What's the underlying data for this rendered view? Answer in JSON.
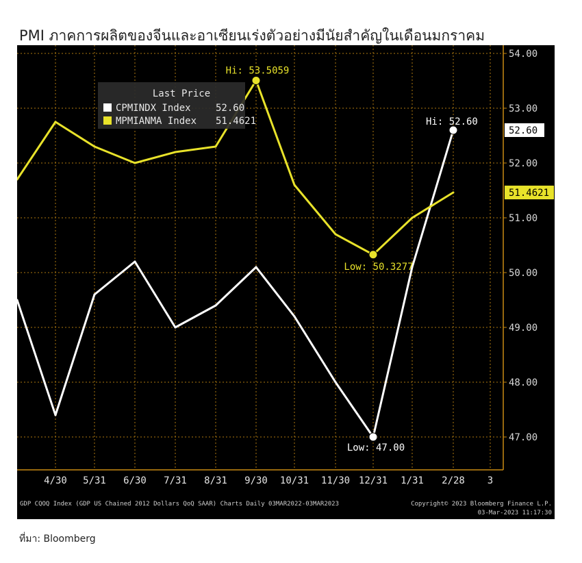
{
  "page": {
    "title": "PMI ภาคการผลิตของจีนและอาเซียนเร่งตัวอย่างมีนัยสำคัญในเดือนมกราคม",
    "source": "ที่มา: Bloomberg"
  },
  "colors": {
    "panel_bg": "#000000",
    "grid": "#b07a10",
    "series_white": "#ffffff",
    "series_yellow": "#e8e22a"
  },
  "chart_data": {
    "type": "line",
    "x_labels": [
      "4/30",
      "5/31",
      "6/30",
      "7/31",
      "8/31",
      "9/30",
      "10/31",
      "11/30",
      "12/31",
      "1/31",
      "2/28",
      "3"
    ],
    "ylim": [
      46.4,
      54.15
    ],
    "y_ticks": [
      "47.00",
      "48.00",
      "49.00",
      "50.00",
      "51.00",
      "52.00",
      "53.00",
      "54.00"
    ],
    "grid": true,
    "legend": {
      "title": "Last Price",
      "placement": "top-left",
      "entries": [
        {
          "label": "CPMINDX Index",
          "value": "52.60",
          "color": "#ffffff"
        },
        {
          "label": "MPMIANMA Index",
          "value": "51.4621",
          "color": "#e8e22a"
        }
      ]
    },
    "series": [
      {
        "name": "CPMINDX Index",
        "color": "#ffffff",
        "points": [
          {
            "x": "3/31",
            "y": 49.5
          },
          {
            "x": "4/30",
            "y": 47.4
          },
          {
            "x": "5/31",
            "y": 49.6
          },
          {
            "x": "6/30",
            "y": 50.2
          },
          {
            "x": "7/31",
            "y": 49.0
          },
          {
            "x": "8/31",
            "y": 49.4
          },
          {
            "x": "9/30",
            "y": 50.1
          },
          {
            "x": "10/31",
            "y": 49.2
          },
          {
            "x": "11/30",
            "y": 48.0
          },
          {
            "x": "12/31",
            "y": 47.0
          },
          {
            "x": "1/31",
            "y": 50.1
          },
          {
            "x": "2/28",
            "y": 52.6
          }
        ],
        "last_label": "52.60",
        "high": {
          "label": "Hi: 52.60",
          "x": "2/28",
          "y": 52.6
        },
        "low": {
          "label": "Low: 47.00",
          "x": "12/31",
          "y": 47.0
        }
      },
      {
        "name": "MPMIANMA Index",
        "color": "#e8e22a",
        "points": [
          {
            "x": "3/31",
            "y": 51.7
          },
          {
            "x": "4/30",
            "y": 52.75
          },
          {
            "x": "5/31",
            "y": 52.3
          },
          {
            "x": "6/30",
            "y": 52.0
          },
          {
            "x": "7/31",
            "y": 52.2
          },
          {
            "x": "8/31",
            "y": 52.3
          },
          {
            "x": "9/30",
            "y": 53.5059
          },
          {
            "x": "10/31",
            "y": 51.6
          },
          {
            "x": "11/30",
            "y": 50.7
          },
          {
            "x": "12/31",
            "y": 50.3277
          },
          {
            "x": "1/31",
            "y": 51.0
          },
          {
            "x": "2/28",
            "y": 51.4621
          }
        ],
        "last_label": "51.4621",
        "high": {
          "label": "Hi: 53.5059",
          "x": "9/30",
          "y": 53.5059
        },
        "low": {
          "label": "Low: 50.3277",
          "x": "12/31",
          "y": 50.3277
        }
      }
    ],
    "footer_left": "GDP CQOQ Index (GDP US Chained 2012 Dollars QoQ SAAR) Charts  Daily 03MAR2022-03MAR2023",
    "footer_right_1": "Copyright© 2023 Bloomberg Finance L.P.",
    "footer_right_2": "03-Mar-2023 11:17:30"
  }
}
